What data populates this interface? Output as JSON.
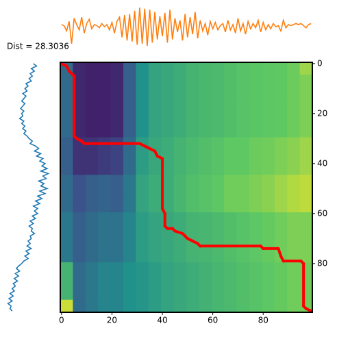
{
  "chart_data": [
    {
      "type": "heatmap",
      "title": "Dist = 28.3036",
      "cmap": "viridis",
      "xlim": [
        -0.5,
        99.5
      ],
      "ylim": [
        99.5,
        -0.5
      ],
      "xticks": [
        0,
        20,
        40,
        60,
        80
      ],
      "yticks": [
        0,
        20,
        40,
        60,
        80
      ],
      "ytick_side": "right",
      "z": [
        [
          0.35,
          0.12,
          0.1,
          0.1,
          0.12,
          0.3,
          0.5,
          0.58,
          0.6,
          0.62,
          0.65,
          0.67,
          0.68,
          0.7,
          0.72,
          0.73,
          0.74,
          0.75,
          0.77,
          0.85
        ],
        [
          0.35,
          0.12,
          0.1,
          0.1,
          0.12,
          0.3,
          0.5,
          0.58,
          0.6,
          0.62,
          0.65,
          0.67,
          0.68,
          0.7,
          0.72,
          0.73,
          0.74,
          0.75,
          0.77,
          0.8
        ],
        [
          0.35,
          0.12,
          0.1,
          0.1,
          0.12,
          0.3,
          0.5,
          0.58,
          0.6,
          0.62,
          0.65,
          0.67,
          0.68,
          0.7,
          0.72,
          0.73,
          0.74,
          0.75,
          0.77,
          0.8
        ],
        [
          0.35,
          0.12,
          0.1,
          0.1,
          0.12,
          0.3,
          0.5,
          0.58,
          0.6,
          0.62,
          0.65,
          0.67,
          0.68,
          0.7,
          0.72,
          0.73,
          0.74,
          0.75,
          0.77,
          0.8
        ],
        [
          0.35,
          0.12,
          0.1,
          0.1,
          0.12,
          0.3,
          0.5,
          0.58,
          0.6,
          0.62,
          0.65,
          0.67,
          0.68,
          0.7,
          0.72,
          0.73,
          0.74,
          0.75,
          0.77,
          0.8
        ],
        [
          0.35,
          0.12,
          0.1,
          0.1,
          0.12,
          0.3,
          0.5,
          0.58,
          0.6,
          0.62,
          0.65,
          0.67,
          0.68,
          0.7,
          0.72,
          0.73,
          0.74,
          0.75,
          0.77,
          0.8
        ],
        [
          0.3,
          0.15,
          0.15,
          0.18,
          0.2,
          0.35,
          0.55,
          0.6,
          0.62,
          0.65,
          0.68,
          0.7,
          0.72,
          0.75,
          0.75,
          0.77,
          0.78,
          0.8,
          0.82,
          0.85
        ],
        [
          0.3,
          0.15,
          0.15,
          0.18,
          0.2,
          0.35,
          0.55,
          0.6,
          0.62,
          0.65,
          0.68,
          0.7,
          0.72,
          0.75,
          0.75,
          0.77,
          0.78,
          0.8,
          0.82,
          0.85
        ],
        [
          0.3,
          0.15,
          0.15,
          0.18,
          0.2,
          0.35,
          0.55,
          0.6,
          0.62,
          0.65,
          0.68,
          0.7,
          0.72,
          0.75,
          0.75,
          0.77,
          0.78,
          0.8,
          0.82,
          0.85
        ],
        [
          0.35,
          0.25,
          0.3,
          0.32,
          0.3,
          0.4,
          0.58,
          0.62,
          0.62,
          0.66,
          0.7,
          0.72,
          0.74,
          0.78,
          0.78,
          0.8,
          0.82,
          0.85,
          0.88,
          0.9
        ],
        [
          0.35,
          0.25,
          0.3,
          0.32,
          0.3,
          0.4,
          0.58,
          0.62,
          0.62,
          0.66,
          0.7,
          0.72,
          0.74,
          0.78,
          0.78,
          0.8,
          0.82,
          0.85,
          0.88,
          0.9
        ],
        [
          0.35,
          0.25,
          0.3,
          0.32,
          0.3,
          0.4,
          0.58,
          0.62,
          0.62,
          0.66,
          0.7,
          0.72,
          0.74,
          0.78,
          0.78,
          0.8,
          0.82,
          0.85,
          0.88,
          0.9
        ],
        [
          0.4,
          0.3,
          0.35,
          0.38,
          0.38,
          0.45,
          0.55,
          0.58,
          0.6,
          0.62,
          0.65,
          0.66,
          0.68,
          0.7,
          0.72,
          0.74,
          0.76,
          0.78,
          0.8,
          0.8
        ],
        [
          0.4,
          0.3,
          0.35,
          0.38,
          0.38,
          0.45,
          0.55,
          0.58,
          0.6,
          0.62,
          0.65,
          0.66,
          0.68,
          0.7,
          0.72,
          0.74,
          0.76,
          0.78,
          0.8,
          0.8
        ],
        [
          0.4,
          0.3,
          0.35,
          0.38,
          0.38,
          0.45,
          0.55,
          0.58,
          0.6,
          0.62,
          0.65,
          0.66,
          0.68,
          0.7,
          0.72,
          0.74,
          0.76,
          0.78,
          0.8,
          0.8
        ],
        [
          0.4,
          0.3,
          0.35,
          0.38,
          0.38,
          0.45,
          0.55,
          0.58,
          0.6,
          0.62,
          0.65,
          0.66,
          0.68,
          0.7,
          0.72,
          0.74,
          0.76,
          0.78,
          0.8,
          0.8
        ],
        [
          0.65,
          0.35,
          0.4,
          0.45,
          0.45,
          0.5,
          0.52,
          0.55,
          0.58,
          0.6,
          0.62,
          0.64,
          0.66,
          0.68,
          0.7,
          0.72,
          0.74,
          0.76,
          0.78,
          0.78
        ],
        [
          0.65,
          0.35,
          0.4,
          0.45,
          0.45,
          0.5,
          0.52,
          0.55,
          0.58,
          0.6,
          0.62,
          0.64,
          0.66,
          0.68,
          0.7,
          0.72,
          0.74,
          0.76,
          0.78,
          0.78
        ],
        [
          0.65,
          0.35,
          0.4,
          0.45,
          0.45,
          0.5,
          0.52,
          0.55,
          0.58,
          0.6,
          0.62,
          0.64,
          0.66,
          0.68,
          0.7,
          0.72,
          0.74,
          0.76,
          0.78,
          0.78
        ],
        [
          0.92,
          0.35,
          0.4,
          0.45,
          0.45,
          0.5,
          0.52,
          0.55,
          0.58,
          0.6,
          0.62,
          0.64,
          0.66,
          0.68,
          0.7,
          0.72,
          0.74,
          0.76,
          0.78,
          0.78
        ]
      ],
      "path": {
        "color": "#ff0000",
        "x": [
          0,
          2,
          3,
          5,
          5,
          6,
          8,
          9,
          31,
          33,
          35,
          37,
          38,
          40,
          40,
          41,
          41,
          42,
          44,
          45,
          48,
          49,
          50,
          52,
          54,
          55,
          79,
          80,
          86,
          87,
          88,
          95,
          96,
          96,
          97,
          99
        ],
        "y": [
          0,
          1,
          3,
          5,
          29,
          30,
          31,
          32,
          32,
          33,
          34,
          35,
          37,
          38,
          58,
          60,
          65,
          66,
          66,
          67,
          68,
          69,
          70,
          71,
          72,
          73,
          73,
          74,
          74,
          77,
          79,
          79,
          80,
          97,
          98,
          99
        ]
      }
    },
    {
      "type": "line",
      "orientation": "horizontal",
      "color": "#ff7f0e",
      "xlim": [
        -0.5,
        99.5
      ],
      "ylim": [
        -2,
        2
      ],
      "values": [
        0.2,
        0.1,
        -0.4,
        0.5,
        -1.6,
        0.8,
        0.2,
        -0.3,
        0.9,
        -0.6,
        0.3,
        0.7,
        -0.2,
        0.2,
        0.1,
        -0.1,
        0.3,
        0.0,
        0.2,
        -0.3,
        0.4,
        -0.6,
        0.5,
        0.9,
        -1.0,
        1.1,
        -1.3,
        1.2,
        -1.4,
        1.5,
        -1.7,
        1.8,
        -1.6,
        1.7,
        -1.8,
        1.6,
        -1.5,
        1.4,
        -1.2,
        1.0,
        -0.9,
        1.3,
        -1.5,
        1.6,
        -1.2,
        0.8,
        -0.5,
        0.6,
        -1.3,
        1.2,
        -1.0,
        0.9,
        -0.7,
        1.4,
        -1.1,
        0.6,
        -0.4,
        0.3,
        -0.8,
        0.5,
        -0.2,
        0.4,
        -0.3,
        0.1,
        0.3,
        -0.5,
        0.6,
        -0.3,
        0.2,
        -0.6,
        0.8,
        -0.4,
        0.3,
        -0.7,
        0.5,
        -0.2,
        0.3,
        -0.1,
        0.6,
        -0.5,
        0.4,
        -0.3,
        0.2,
        -0.2,
        0.3,
        0.0,
        0.1,
        -0.4,
        0.6,
        -0.1,
        0.2,
        0.1,
        0.2,
        0.3,
        0.2,
        0.3,
        0.1,
        -0.1,
        0.2,
        0.3
      ]
    },
    {
      "type": "line",
      "orientation": "vertical",
      "color": "#1f77b4",
      "xlim": [
        -2,
        2
      ],
      "ylim": [
        99.5,
        -0.5
      ],
      "values": [
        0.5,
        0.8,
        0.3,
        0.6,
        0.2,
        0.4,
        0.1,
        0.3,
        -0.2,
        0.0,
        -0.3,
        -0.1,
        -0.5,
        -0.2,
        -0.4,
        -0.6,
        -0.3,
        -0.5,
        -0.7,
        -0.4,
        -0.6,
        -0.5,
        -0.8,
        -0.4,
        -0.6,
        -0.3,
        -0.5,
        -0.2,
        -0.4,
        -0.1,
        0.1,
        0.4,
        0.2,
        0.7,
        1.0,
        0.6,
        1.2,
        0.8,
        1.4,
        1.1,
        1.6,
        1.3,
        1.8,
        1.2,
        1.9,
        1.4,
        1.7,
        1.0,
        1.5,
        1.2,
        1.8,
        1.1,
        1.6,
        0.9,
        1.3,
        0.7,
        1.1,
        0.5,
        0.9,
        0.6,
        0.9,
        0.4,
        0.7,
        0.2,
        0.5,
        0.1,
        0.4,
        0.3,
        0.6,
        0.2,
        0.3,
        0.0,
        0.2,
        -0.1,
        0.3,
        -0.2,
        0.1,
        -0.3,
        0.0,
        -0.4,
        -0.6,
        -0.9,
        -1.1,
        -0.8,
        -1.2,
        -0.9,
        -1.3,
        -1.0,
        -1.4,
        -1.2,
        -1.5,
        -1.3,
        -1.7,
        -1.4,
        -1.8,
        -1.5,
        -1.9,
        -1.6,
        -1.7,
        -1.5
      ]
    }
  ]
}
